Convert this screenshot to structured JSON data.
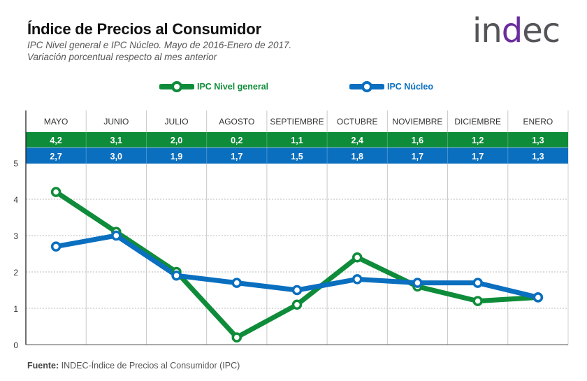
{
  "header": {
    "title": "Índice de Precios al Consumidor",
    "subtitle_line1": "IPC Nivel general e IPC Núcleo. Mayo de 2016-Enero de 2017.",
    "subtitle_line2": "Variación porcentual respecto al mes anterior",
    "logo_text_pre": "in",
    "logo_text_d": "d",
    "logo_text_post": "ec"
  },
  "legend": [
    {
      "label": "IPC Nivel general",
      "color": "#0e8c3a"
    },
    {
      "label": "IPC Núcleo",
      "color": "#0a6fbf"
    }
  ],
  "footer": {
    "source_label": "Fuente:",
    "source_text": " INDEC-Índice de Precios al Consumidor (IPC)"
  },
  "chart_data": {
    "type": "line",
    "title": "Índice de Precios al Consumidor",
    "subtitle": "IPC Nivel general e IPC Núcleo. Mayo de 2016-Enero de 2017. Variación porcentual respecto al mes anterior",
    "xlabel": "",
    "ylabel": "",
    "categories": [
      "MAYO",
      "JUNIO",
      "JULIO",
      "AGOSTO",
      "SEPTIEMBRE",
      "OCTUBRE",
      "NOVIEMBRE",
      "DICIEMBRE",
      "ENERO"
    ],
    "series": [
      {
        "name": "IPC Nivel general",
        "color": "#0e8c3a",
        "values": [
          4.2,
          3.1,
          2.0,
          0.2,
          1.1,
          2.4,
          1.6,
          1.2,
          1.3
        ],
        "labels": [
          "4,2",
          "3,1",
          "2,0",
          "0,2",
          "1,1",
          "2,4",
          "1,6",
          "1,2",
          "1,3"
        ]
      },
      {
        "name": "IPC Núcleo",
        "color": "#0a6fbf",
        "values": [
          2.7,
          3.0,
          1.9,
          1.7,
          1.5,
          1.8,
          1.7,
          1.7,
          1.3
        ],
        "labels": [
          "2,7",
          "3,0",
          "1,9",
          "1,7",
          "1,5",
          "1,8",
          "1,7",
          "1,7",
          "1,3"
        ]
      }
    ],
    "yticks": [
      0,
      1,
      2,
      3,
      4,
      5
    ],
    "ylim": [
      0,
      5
    ],
    "grid": true,
    "legend_position": "top"
  },
  "source": "Fuente: INDEC-Índice de Precios al Consumidor (IPC)"
}
